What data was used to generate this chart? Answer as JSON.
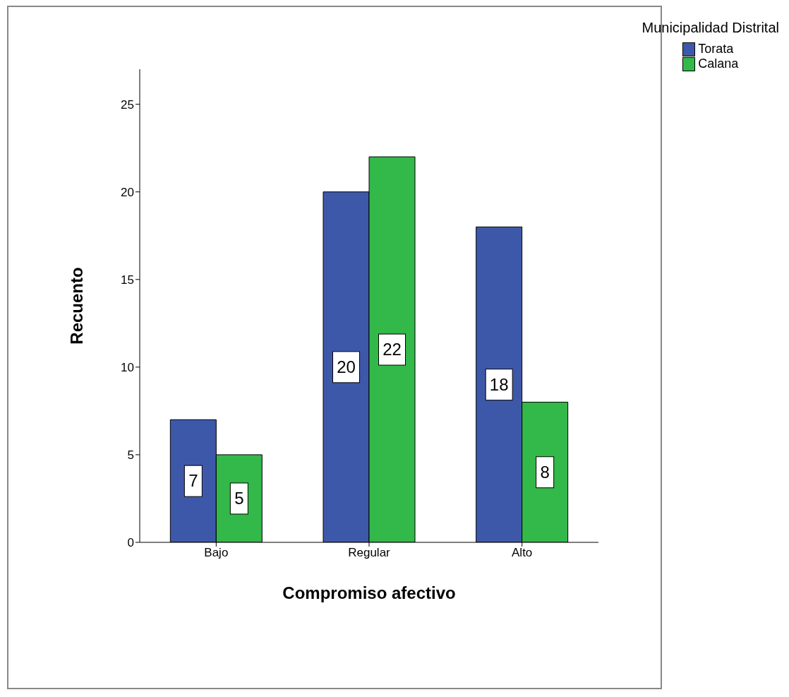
{
  "chart_data": {
    "type": "bar",
    "xlabel": "Compromiso afectivo",
    "ylabel": "Recuento",
    "legend_title": "Municipalidad Distrital",
    "categories": [
      "Bajo",
      "Regular",
      "Alto"
    ],
    "series": [
      {
        "name": "Torata",
        "color": "#3e58a9",
        "values": [
          7,
          20,
          18
        ]
      },
      {
        "name": "Calana",
        "color": "#33b84a",
        "values": [
          5,
          22,
          8
        ]
      }
    ],
    "ylim": [
      0,
      27
    ],
    "yticks": [
      0,
      5,
      10,
      15,
      20,
      25
    ],
    "grid": false,
    "legend": "top right",
    "data_labels": true
  }
}
